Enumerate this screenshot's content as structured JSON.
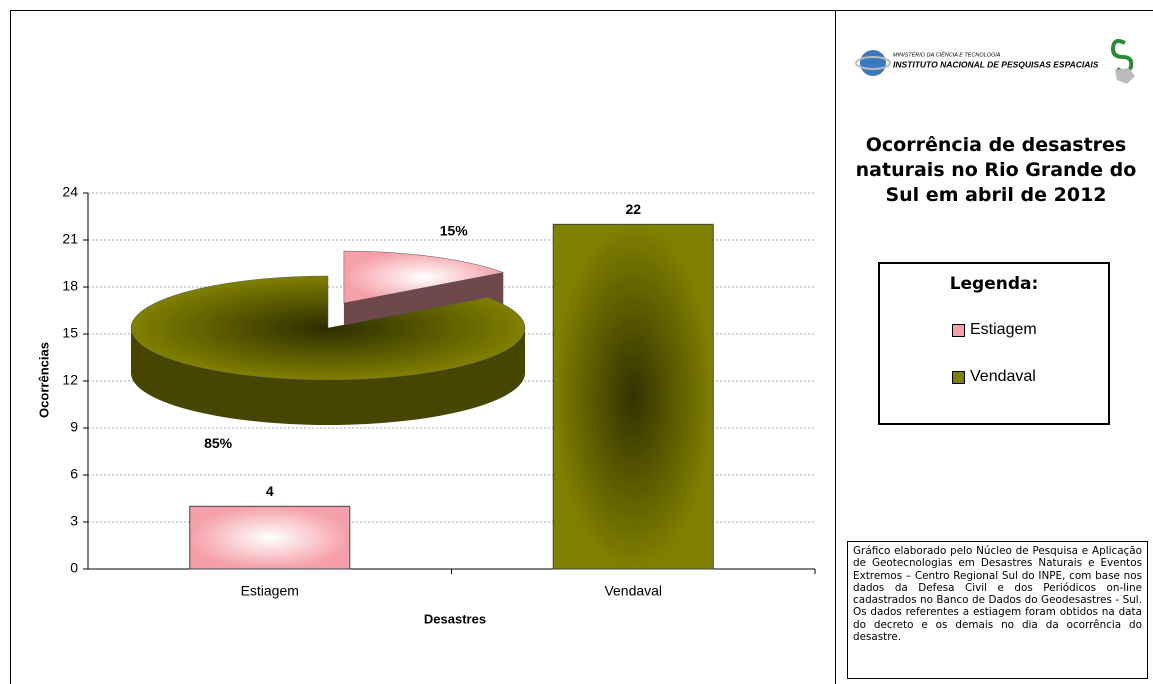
{
  "header": {
    "ministry": "MINISTÉRIO DA CIÊNCIA E TECNOLOGIA",
    "institute": "INSTITUTO NACIONAL DE PESQUISAS ESPACIAIS"
  },
  "chart_data": [
    {
      "type": "bar",
      "title": "Ocorrência de desastres naturais no Rio Grande do Sul em abril de 2012",
      "legend_title": "Legenda:",
      "categories": [
        "Estiagem",
        "Vendaval"
      ],
      "values": [
        4,
        22
      ],
      "colors": [
        "#f4a0a8",
        "#808000"
      ],
      "xlabel": "Desastres",
      "ylabel": "Ocorrências",
      "ylim": [
        0,
        24
      ],
      "yticks": [
        0,
        3,
        6,
        9,
        12,
        15,
        18,
        21,
        24
      ],
      "grid": true,
      "annotation": "Gráfico elaborado pelo Núcleo de Pesquisa e Aplicação de Geotecnologias em Desastres Naturais e Eventos Extremos – Centro Regional Sul do INPE, com base nos dados da Defesa Civil e dos Periódicos on-line cadastrados no Banco de Dados do Geodesastres - Sul. Os dados referentes a estiagem foram obtidos na data do decreto e os demais no dia da ocorrência do desastre."
    },
    {
      "type": "pie",
      "values": [
        15,
        85
      ],
      "value_labels": [
        "15%",
        "85%"
      ],
      "colors": [
        "#f4a0a8",
        "#808000"
      ]
    }
  ]
}
